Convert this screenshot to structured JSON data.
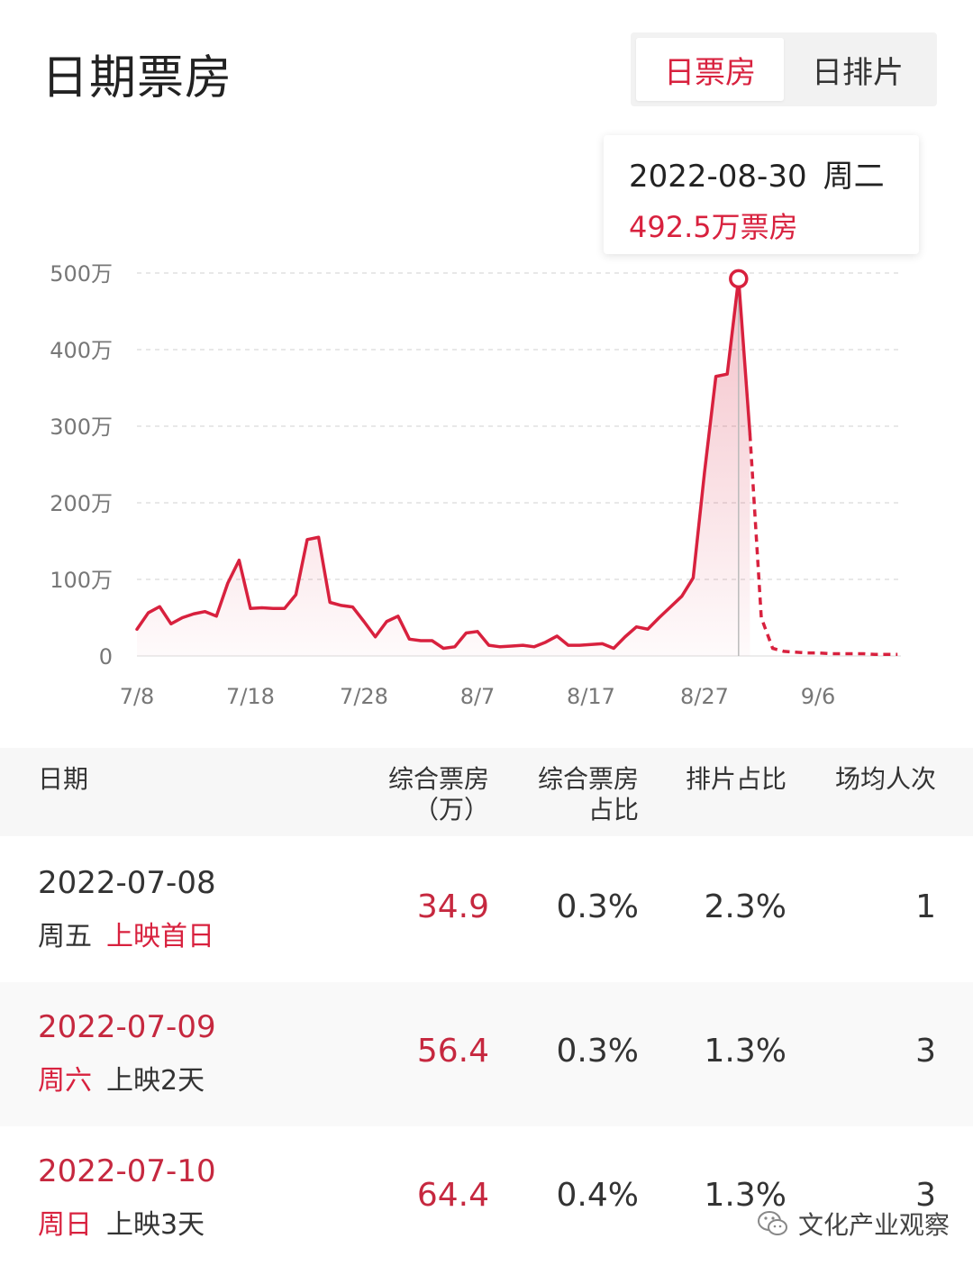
{
  "page_title": "日期票房",
  "tabs": [
    {
      "label": "日票房",
      "active": true
    },
    {
      "label": "日排片",
      "active": false
    }
  ],
  "tooltip": {
    "date": "2022-08-30",
    "weekday": "周二",
    "value": "492.5万票房"
  },
  "colors": {
    "accent": "#d8213e",
    "grid": "#e0e0e0",
    "axis_text": "#777777"
  },
  "chart_data": {
    "type": "line",
    "x_tick_labels": [
      "7/8",
      "7/18",
      "7/28",
      "8/7",
      "8/17",
      "8/27",
      "9/6"
    ],
    "y_tick_labels": [
      "0",
      "100万",
      "200万",
      "300万",
      "400万",
      "500万"
    ],
    "ylim": [
      0,
      500
    ],
    "grid": true,
    "start_date": "2022-07-08",
    "highlight": {
      "day": 53,
      "value": 492.5
    },
    "series": [
      {
        "style": "solid",
        "values": [
          [
            0,
            34.9
          ],
          [
            1,
            56.4
          ],
          [
            2,
            64.4
          ],
          [
            3,
            42
          ],
          [
            4,
            50
          ],
          [
            5,
            55
          ],
          [
            6,
            58
          ],
          [
            7,
            52
          ],
          [
            8,
            95
          ],
          [
            9,
            125
          ],
          [
            10,
            62
          ],
          [
            11,
            63
          ],
          [
            12,
            62
          ],
          [
            13,
            62
          ],
          [
            14,
            80
          ],
          [
            15,
            152
          ],
          [
            16,
            155
          ],
          [
            17,
            70
          ],
          [
            18,
            66
          ],
          [
            19,
            64
          ],
          [
            20,
            45
          ],
          [
            21,
            25
          ],
          [
            22,
            45
          ],
          [
            23,
            52
          ],
          [
            24,
            22
          ],
          [
            25,
            20
          ],
          [
            26,
            20
          ],
          [
            27,
            10
          ],
          [
            28,
            12
          ],
          [
            29,
            30
          ],
          [
            30,
            32
          ],
          [
            31,
            14
          ],
          [
            32,
            12
          ],
          [
            33,
            13
          ],
          [
            34,
            14
          ],
          [
            35,
            12
          ],
          [
            36,
            18
          ],
          [
            37,
            26
          ],
          [
            38,
            14
          ],
          [
            39,
            14
          ],
          [
            40,
            15
          ],
          [
            41,
            16
          ],
          [
            42,
            10
          ],
          [
            43,
            25
          ],
          [
            44,
            38
          ],
          [
            45,
            35
          ],
          [
            46,
            50
          ],
          [
            47,
            64
          ],
          [
            48,
            78
          ],
          [
            49,
            102
          ],
          [
            50,
            240
          ],
          [
            51,
            365
          ],
          [
            52,
            368
          ],
          [
            53,
            492.5
          ],
          [
            54,
            290
          ]
        ]
      },
      {
        "style": "dashed",
        "values": [
          [
            54,
            290
          ],
          [
            55,
            50
          ],
          [
            56,
            10
          ],
          [
            57,
            6
          ],
          [
            58,
            5
          ],
          [
            59,
            4
          ],
          [
            60,
            4
          ],
          [
            61,
            3
          ],
          [
            62,
            3
          ],
          [
            63,
            3
          ],
          [
            64,
            3
          ],
          [
            65,
            2
          ],
          [
            66,
            2
          ],
          [
            67,
            2
          ]
        ]
      }
    ]
  },
  "table": {
    "columns": [
      {
        "label_lines": [
          "日期"
        ]
      },
      {
        "label_lines": [
          "综合票房",
          "（万）"
        ]
      },
      {
        "label_lines": [
          "综合票房",
          "占比"
        ]
      },
      {
        "label_lines": [
          "排片占比"
        ]
      },
      {
        "label_lines": [
          "场均人次"
        ]
      }
    ],
    "rows": [
      {
        "date": "2022-07-08",
        "weekday": "周五",
        "note": "上映首日",
        "box_office": "34.9",
        "box_share": "0.3%",
        "screen_share": "2.3%",
        "avg_viewers": "1"
      },
      {
        "date": "2022-07-09",
        "weekday": "周六",
        "note": "上映2天",
        "box_office": "56.4",
        "box_share": "0.3%",
        "screen_share": "1.3%",
        "avg_viewers": "3"
      },
      {
        "date": "2022-07-10",
        "weekday": "周日",
        "note": "上映3天",
        "box_office": "64.4",
        "box_share": "0.4%",
        "screen_share": "1.3%",
        "avg_viewers": "3"
      }
    ]
  },
  "watermark": {
    "text": "文化产业观察",
    "icon": "wechat-icon"
  }
}
